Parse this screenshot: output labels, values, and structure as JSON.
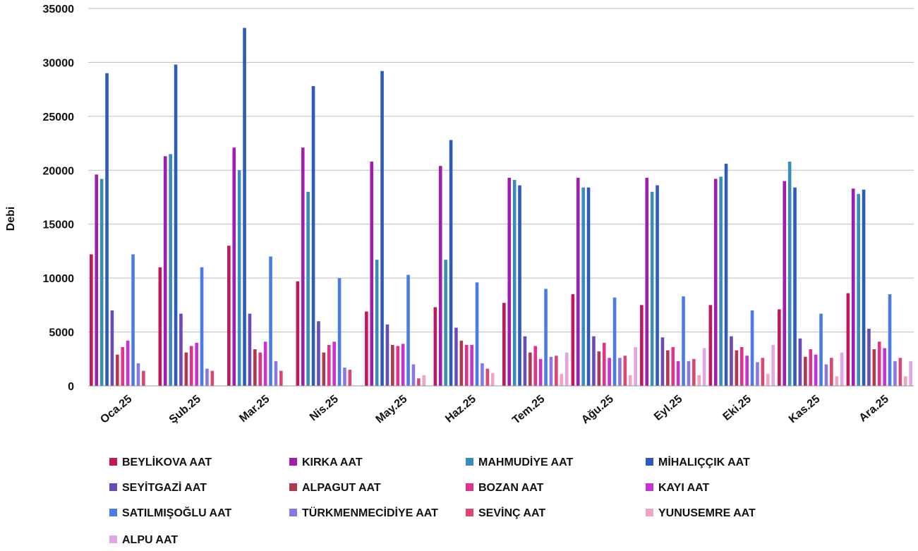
{
  "chart_data": {
    "type": "bar",
    "title": "",
    "xlabel": "",
    "ylabel": "Debi",
    "ylim": [
      0,
      35000
    ],
    "yticks": [
      0,
      5000,
      10000,
      15000,
      20000,
      25000,
      30000,
      35000
    ],
    "grid": true,
    "legend_position": "bottom",
    "categories": [
      "Oca.25",
      "Şub.25",
      "Mar.25",
      "Nis.25",
      "May.25",
      "Haz.25",
      "Tem.25",
      "Ağu.25",
      "Eyl.25",
      "Eki.25",
      "Kas.25",
      "Ara.25"
    ],
    "series": [
      {
        "name": "BEYLİKOVA AAT",
        "color": "#C2185B",
        "values": [
          12200,
          11000,
          13000,
          9700,
          6900,
          7300,
          7700,
          8500,
          7500,
          7500,
          7100,
          8600
        ]
      },
      {
        "name": "KIRKA AAT",
        "color": "#A21CAF",
        "values": [
          19600,
          21300,
          22100,
          22100,
          20800,
          20400,
          19300,
          19300,
          19300,
          19200,
          19000,
          18300
        ]
      },
      {
        "name": "MAHMUDİYE AAT",
        "color": "#3A8DB8",
        "values": [
          19200,
          21500,
          20000,
          18000,
          11700,
          11700,
          19100,
          18400,
          18000,
          19400,
          20800,
          17800
        ]
      },
      {
        "name": "MİHALIÇÇIK AAT",
        "color": "#2E5BBA",
        "values": [
          29000,
          29800,
          33200,
          27800,
          29200,
          22800,
          18600,
          18400,
          18600,
          20600,
          18400,
          18200
        ]
      },
      {
        "name": "SEYİTGAZİ AAT",
        "color": "#6A4CB8",
        "values": [
          7000,
          6700,
          6700,
          6000,
          5700,
          5400,
          4600,
          4600,
          4500,
          4600,
          4400,
          5300
        ]
      },
      {
        "name": "ALPAGUT AAT",
        "color": "#B0384F",
        "values": [
          2900,
          3100,
          3400,
          3100,
          3800,
          4200,
          3100,
          3200,
          3300,
          3300,
          2700,
          3400
        ]
      },
      {
        "name": "BOZAN AAT",
        "color": "#E0338B",
        "values": [
          3600,
          3700,
          3100,
          3800,
          3700,
          3800,
          3700,
          4000,
          3600,
          3600,
          3400,
          4100
        ]
      },
      {
        "name": "KAYI AAT",
        "color": "#C832D0",
        "values": [
          4200,
          4000,
          4100,
          4100,
          3900,
          3800,
          2500,
          2600,
          2300,
          2800,
          2900,
          3500
        ]
      },
      {
        "name": "SATILMIŞOĞLU AAT",
        "color": "#4A7CE6",
        "values": [
          12200,
          11000,
          12000,
          10000,
          10300,
          9600,
          9000,
          8200,
          8300,
          7000,
          6700,
          8500
        ]
      },
      {
        "name": "TÜRKMENMECİDİYE AAT",
        "color": "#8A78E0",
        "values": [
          2100,
          1600,
          2300,
          1700,
          2000,
          2100,
          2700,
          2600,
          2300,
          2200,
          2000,
          2300
        ]
      },
      {
        "name": "SEVİNÇ AAT",
        "color": "#D84870",
        "values": [
          1400,
          1400,
          1400,
          1500,
          700,
          1600,
          2800,
          2800,
          2500,
          2600,
          2600,
          2600
        ]
      },
      {
        "name": "YUNUSEMRE AAT",
        "color": "#EFA6C4",
        "values": [
          0,
          0,
          0,
          0,
          1000,
          1200,
          1100,
          1000,
          1000,
          1100,
          900,
          900
        ]
      },
      {
        "name": "ALPU AAT",
        "color": "#E2A6E6",
        "values": [
          0,
          0,
          0,
          0,
          0,
          0,
          3100,
          3600,
          3500,
          3800,
          3100,
          2300
        ]
      }
    ]
  }
}
